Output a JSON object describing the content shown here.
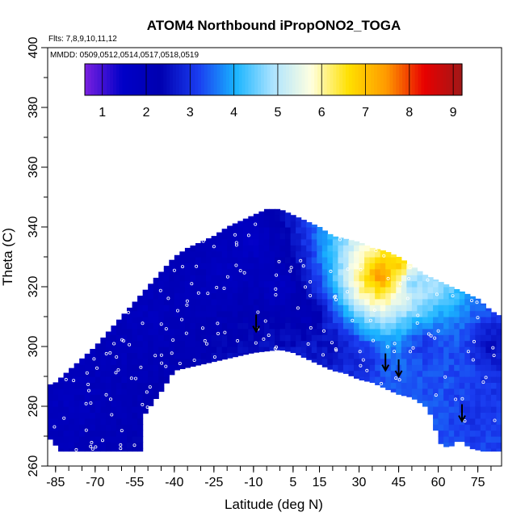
{
  "chart_data": {
    "type": "heatmap",
    "title": "ATOM4 Northbound iPropONO2_TOGA",
    "annotations": {
      "flights": "Flts: 7,8,9,10,11,12",
      "dates": "MMDD: 0509,0512,0514,0517,0518,0519"
    },
    "xlabel": "Latitude (deg N)",
    "ylabel": "Theta (C)",
    "xlim": [
      -88,
      84
    ],
    "ylim": [
      260,
      400
    ],
    "x_ticks": [
      -85,
      -70,
      -55,
      -40,
      -25,
      -10,
      5,
      15,
      30,
      45,
      60,
      75
    ],
    "x_tick_labels": [
      "-85",
      "-70",
      "-55",
      "-40",
      "-25",
      "-10",
      "5",
      "15",
      "30",
      "45",
      "60",
      "75"
    ],
    "y_ticks": [
      260,
      280,
      300,
      320,
      340,
      360,
      380,
      400
    ],
    "y_tick_labels": [
      "260",
      "280",
      "300",
      "320",
      "340",
      "360",
      "380",
      "400"
    ],
    "colorbar": {
      "range": [
        0.6,
        9.2
      ],
      "ticks": [
        1,
        2,
        3,
        4,
        5,
        6,
        7,
        8,
        9
      ],
      "tick_labels": [
        "1",
        "2",
        "3",
        "4",
        "5",
        "6",
        "7",
        "8",
        "9"
      ],
      "colors": [
        "#7a20e0",
        "#0000c8",
        "#0000b0",
        "#1a3cf0",
        "#19b4ff",
        "#aee4ff",
        "#ffffe0",
        "#ffe000",
        "#ff9900",
        "#e80000",
        "#a01818"
      ]
    },
    "theta_top": [
      [
        -88,
        287
      ],
      [
        -85,
        288
      ],
      [
        -80,
        292
      ],
      [
        -75,
        296
      ],
      [
        -70,
        300
      ],
      [
        -65,
        305
      ],
      [
        -60,
        310
      ],
      [
        -55,
        315
      ],
      [
        -50,
        320
      ],
      [
        -45,
        325
      ],
      [
        -40,
        330
      ],
      [
        -35,
        333
      ],
      [
        -30,
        335
      ],
      [
        -25,
        337
      ],
      [
        -20,
        340
      ],
      [
        -15,
        342
      ],
      [
        -10,
        344
      ],
      [
        -5,
        346
      ],
      [
        0,
        346
      ],
      [
        5,
        344
      ],
      [
        10,
        342
      ],
      [
        15,
        340
      ],
      [
        20,
        337
      ],
      [
        25,
        336
      ],
      [
        30,
        335
      ],
      [
        35,
        333
      ],
      [
        40,
        332
      ],
      [
        45,
        330
      ],
      [
        50,
        327
      ],
      [
        55,
        324
      ],
      [
        60,
        322
      ],
      [
        65,
        320
      ],
      [
        70,
        318
      ],
      [
        75,
        316
      ],
      [
        80,
        312
      ],
      [
        84,
        310
      ]
    ],
    "theta_bottom": [
      [
        -88,
        270
      ],
      [
        -83,
        265
      ],
      [
        -53,
        265
      ],
      [
        -53,
        275
      ],
      [
        -50,
        279
      ],
      [
        -45,
        285
      ],
      [
        -40,
        292
      ],
      [
        -35,
        293
      ],
      [
        -30,
        294
      ],
      [
        -25,
        295
      ],
      [
        -20,
        296
      ],
      [
        -15,
        297
      ],
      [
        -10,
        298
      ],
      [
        -5,
        298.5
      ],
      [
        0,
        299
      ],
      [
        5,
        298
      ],
      [
        10,
        296
      ],
      [
        15,
        294
      ],
      [
        20,
        292
      ],
      [
        25,
        291
      ],
      [
        30,
        289
      ],
      [
        35,
        288
      ],
      [
        40,
        286
      ],
      [
        45,
        284
      ],
      [
        50,
        283
      ],
      [
        55,
        280
      ],
      [
        58,
        276
      ],
      [
        60,
        268
      ],
      [
        64,
        266
      ],
      [
        68,
        269
      ],
      [
        72,
        266
      ],
      [
        77,
        265
      ],
      [
        84,
        265
      ]
    ],
    "field": [
      {
        "lat": -80,
        "theta": 280,
        "value": 1.8
      },
      {
        "lat": -65,
        "theta": 295,
        "value": 1.9
      },
      {
        "lat": -50,
        "theta": 310,
        "value": 1.8
      },
      {
        "lat": -35,
        "theta": 320,
        "value": 1.9
      },
      {
        "lat": -20,
        "theta": 325,
        "value": 1.7
      },
      {
        "lat": -10,
        "theta": 335,
        "value": 1.5
      },
      {
        "lat": 0,
        "theta": 320,
        "value": 1.6
      },
      {
        "lat": 10,
        "theta": 310,
        "value": 1.9
      },
      {
        "lat": 20,
        "theta": 300,
        "value": 2.4
      },
      {
        "lat": 30,
        "theta": 295,
        "value": 2.8
      },
      {
        "lat": 35,
        "theta": 320,
        "value": 6.2
      },
      {
        "lat": 38,
        "theta": 323,
        "value": 8.2
      },
      {
        "lat": 45,
        "theta": 327,
        "value": 7.0
      },
      {
        "lat": 50,
        "theta": 322,
        "value": 4.5
      },
      {
        "lat": 55,
        "theta": 300,
        "value": 3.0
      },
      {
        "lat": 65,
        "theta": 290,
        "value": 3.3
      },
      {
        "lat": 75,
        "theta": 280,
        "value": 3.0
      },
      {
        "lat": 80,
        "theta": 300,
        "value": 2.5
      }
    ],
    "arrows": [
      {
        "lat": -9,
        "theta": 305
      },
      {
        "lat": 40,
        "theta": 292
      },
      {
        "lat": 45,
        "theta": 290
      },
      {
        "lat": 69,
        "theta": 275
      }
    ]
  }
}
